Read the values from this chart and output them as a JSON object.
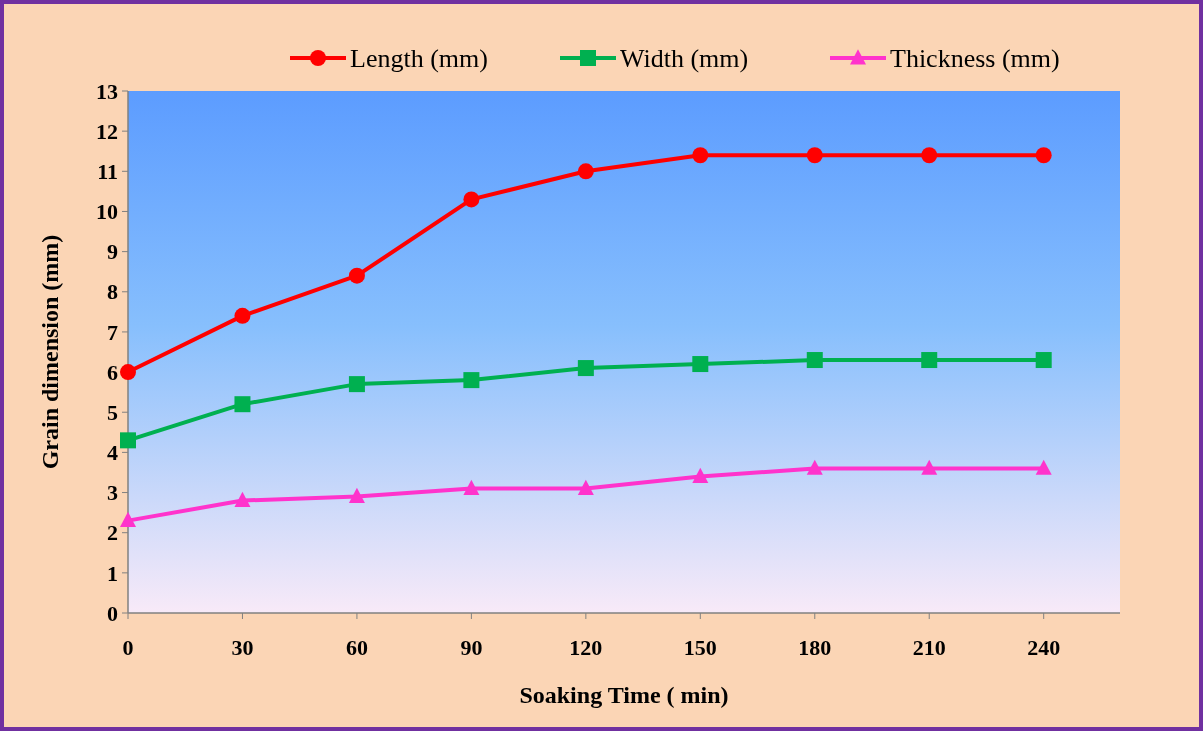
{
  "chart_data": {
    "type": "line",
    "xlabel": "Soaking Time ( min)",
    "ylabel": "Grain  dimension (mm)",
    "x": [
      0,
      30,
      60,
      90,
      120,
      150,
      180,
      210,
      240
    ],
    "series": [
      {
        "name": "Length (mm)",
        "color": "#ff0000",
        "marker": "circle",
        "values": [
          6.0,
          7.4,
          8.4,
          10.3,
          11.0,
          11.4,
          11.4,
          11.4,
          11.4
        ]
      },
      {
        "name": "Width (mm)",
        "color": "#00b050",
        "marker": "square",
        "values": [
          4.3,
          5.2,
          5.7,
          5.8,
          6.1,
          6.2,
          6.3,
          6.3,
          6.3
        ]
      },
      {
        "name": "Thickness (mm)",
        "color": "#ff33cc",
        "marker": "triangle",
        "values": [
          2.3,
          2.8,
          2.9,
          3.1,
          3.1,
          3.4,
          3.6,
          3.6,
          3.6
        ]
      }
    ],
    "xlim": [
      0,
      260
    ],
    "xticks": [
      0,
      30,
      60,
      90,
      120,
      150,
      180,
      210,
      240
    ],
    "ylim": [
      0,
      13
    ],
    "yticks": [
      0,
      1,
      2,
      3,
      4,
      5,
      6,
      7,
      8,
      9,
      10,
      11,
      12,
      13
    ],
    "grid": false,
    "legend": "top",
    "line_style": "solid"
  }
}
